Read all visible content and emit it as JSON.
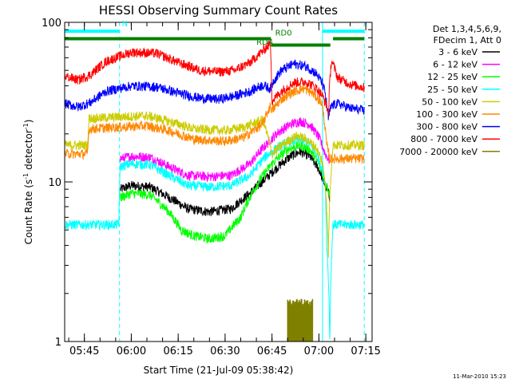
{
  "chart_data": {
    "type": "line",
    "title": "HESSI Observing Summary Count Rates",
    "xlabel": "Start Time (21-Jul-09 05:38:42)",
    "ylabel_parts": [
      "Count Rate (s",
      "-1",
      " detector",
      "-1",
      ")"
    ],
    "yscale": "log",
    "ylim": [
      1,
      100
    ],
    "xlim": [
      "05:38:42",
      "07:17:00"
    ],
    "y_ticks": [
      {
        "value": 1,
        "label": "1"
      },
      {
        "value": 10,
        "label": "10"
      },
      {
        "value": 100,
        "label": "100"
      }
    ],
    "x_ticks": [
      {
        "time": "05:45",
        "label": "05:45"
      },
      {
        "time": "06:00",
        "label": "06:00"
      },
      {
        "time": "06:15",
        "label": "06:15"
      },
      {
        "time": "06:30",
        "label": "06:30"
      },
      {
        "time": "06:45",
        "label": "06:45"
      },
      {
        "time": "07:00",
        "label": "07:00"
      },
      {
        "time": "07:15",
        "label": "07:15"
      }
    ],
    "legend_header": [
      "Det 1,3,4,5,6,9,",
      "FDecim 1, Att 0"
    ],
    "legend_position": "right",
    "series": [
      {
        "name": "3 - 6 keV",
        "color": "#000000",
        "style": "noisy",
        "points": [
          [
            "05:56:30",
            9.0
          ],
          [
            "06:00",
            9.5
          ],
          [
            "06:06",
            9.3
          ],
          [
            "06:12",
            8.0
          ],
          [
            "06:18",
            6.8
          ],
          [
            "06:25",
            6.5
          ],
          [
            "06:32",
            6.8
          ],
          [
            "06:38",
            8.5
          ],
          [
            "06:43",
            10.5
          ],
          [
            "06:47",
            12.5
          ],
          [
            "06:51",
            14.5
          ],
          [
            "06:54",
            15.5
          ],
          [
            "06:57",
            14.5
          ],
          [
            "07:00",
            12.0
          ],
          [
            "07:02",
            9.5
          ],
          [
            "07:03:30",
            8.0
          ]
        ]
      },
      {
        "name": "6 - 12 keV",
        "color": "#ff00ff",
        "style": "noisy",
        "points": [
          [
            "05:56:30",
            14.0
          ],
          [
            "06:00",
            14.5
          ],
          [
            "06:06",
            14.3
          ],
          [
            "06:12",
            12.5
          ],
          [
            "06:18",
            11.0
          ],
          [
            "06:25",
            10.8
          ],
          [
            "06:32",
            11.0
          ],
          [
            "06:38",
            13.0
          ],
          [
            "06:43",
            17.0
          ],
          [
            "06:47",
            20.5
          ],
          [
            "06:51",
            23.0
          ],
          [
            "06:54",
            24.0
          ],
          [
            "06:57",
            23.0
          ],
          [
            "07:00",
            19.0
          ],
          [
            "07:02",
            15.0
          ],
          [
            "07:03:30",
            13.5
          ]
        ]
      },
      {
        "name": "12 - 25 keV",
        "color": "#00ff00",
        "style": "noisy",
        "points": [
          [
            "05:56:30",
            8.0
          ],
          [
            "06:00",
            8.5
          ],
          [
            "06:06",
            8.3
          ],
          [
            "06:12",
            6.5
          ],
          [
            "06:16",
            5.0
          ],
          [
            "06:20",
            4.6
          ],
          [
            "06:25",
            4.4
          ],
          [
            "06:30",
            4.6
          ],
          [
            "06:35",
            6.0
          ],
          [
            "06:40",
            9.5
          ],
          [
            "06:45",
            13.0
          ],
          [
            "06:50",
            16.0
          ],
          [
            "06:54",
            17.0
          ],
          [
            "06:57",
            16.0
          ],
          [
            "07:00",
            13.0
          ],
          [
            "07:02",
            10.0
          ],
          [
            "07:03:30",
            8.5
          ]
        ]
      },
      {
        "name": "25 - 50 keV",
        "color": "#00ffff",
        "style": "noisy",
        "points": [
          [
            "05:38:42",
            5.4
          ],
          [
            "05:56:00",
            5.4
          ],
          [
            "05:56:30",
            12.5
          ],
          [
            "06:00",
            13.0
          ],
          [
            "06:06",
            12.8
          ],
          [
            "06:12",
            11.0
          ],
          [
            "06:18",
            9.5
          ],
          [
            "06:25",
            9.3
          ],
          [
            "06:32",
            9.5
          ],
          [
            "06:38",
            11.0
          ],
          [
            "06:43",
            14.5
          ],
          [
            "06:47",
            16.5
          ],
          [
            "06:51",
            18.0
          ],
          [
            "06:54",
            18.5
          ],
          [
            "06:57",
            17.5
          ],
          [
            "07:00",
            14.0
          ],
          [
            "07:02",
            10.0
          ],
          [
            "07:02:30",
            4.0
          ],
          [
            "07:03:30",
            1.0
          ],
          [
            "07:04:30",
            5.4
          ],
          [
            "07:14:30",
            5.4
          ]
        ]
      },
      {
        "name": "50 - 100 keV",
        "color": "#cccc00",
        "style": "noisy",
        "points": [
          [
            "05:38:42",
            17.0
          ],
          [
            "05:46:00",
            17.0
          ],
          [
            "05:46:30",
            25.0
          ],
          [
            "05:55",
            25.5
          ],
          [
            "06:05",
            26.0
          ],
          [
            "06:12",
            24.0
          ],
          [
            "06:20",
            21.5
          ],
          [
            "06:30",
            21.0
          ],
          [
            "06:36",
            22.0
          ],
          [
            "06:42",
            24.5
          ],
          [
            "06:45",
            15.0
          ],
          [
            "06:49",
            17.5
          ],
          [
            "06:53",
            19.5
          ],
          [
            "06:56",
            18.5
          ],
          [
            "06:59",
            16.5
          ],
          [
            "07:01",
            13.5
          ],
          [
            "07:02",
            10.0
          ],
          [
            "07:03",
            3.5
          ],
          [
            "07:04:30",
            17.0
          ],
          [
            "07:14:30",
            17.0
          ]
        ]
      },
      {
        "name": "100 - 300 keV",
        "color": "#ff8800",
        "style": "noisy",
        "points": [
          [
            "05:38:42",
            15.0
          ],
          [
            "05:46:00",
            15.0
          ],
          [
            "05:46:30",
            21.5
          ],
          [
            "05:55",
            22.0
          ],
          [
            "06:05",
            22.5
          ],
          [
            "06:12",
            21.0
          ],
          [
            "06:20",
            18.5
          ],
          [
            "06:30",
            18.0
          ],
          [
            "06:36",
            19.0
          ],
          [
            "06:42",
            23.0
          ],
          [
            "06:44:30",
            30.0
          ],
          [
            "06:45",
            28.0
          ],
          [
            "06:48",
            33.0
          ],
          [
            "06:52",
            37.0
          ],
          [
            "06:55",
            38.5
          ],
          [
            "06:58",
            36.0
          ],
          [
            "07:01",
            31.0
          ],
          [
            "07:02:30",
            17.0
          ],
          [
            "07:03:30",
            14.0
          ],
          [
            "07:14:30",
            14.0
          ]
        ]
      },
      {
        "name": "300 - 800 keV",
        "color": "#0000ff",
        "style": "noisy",
        "points": [
          [
            "05:38:42",
            31.0
          ],
          [
            "05:43",
            29.5
          ],
          [
            "05:47",
            31.5
          ],
          [
            "05:52",
            37.0
          ],
          [
            "06:00",
            40.0
          ],
          [
            "06:08",
            39.5
          ],
          [
            "06:15",
            36.0
          ],
          [
            "06:22",
            33.5
          ],
          [
            "06:28",
            33.0
          ],
          [
            "06:33",
            34.5
          ],
          [
            "06:38",
            37.0
          ],
          [
            "06:42",
            40.5
          ],
          [
            "06:44:30",
            38.5
          ],
          [
            "06:45:30",
            43.0
          ],
          [
            "06:48",
            50.0
          ],
          [
            "06:52",
            55.0
          ],
          [
            "06:56",
            53.0
          ],
          [
            "06:59",
            48.0
          ],
          [
            "07:01",
            42.0
          ],
          [
            "07:02",
            36.0
          ],
          [
            "07:03",
            25.0
          ],
          [
            "07:04",
            30.0
          ],
          [
            "07:06",
            31.0
          ],
          [
            "07:10",
            29.0
          ],
          [
            "07:14:30",
            28.0
          ]
        ]
      },
      {
        "name": "800 - 7000 keV",
        "color": "#ff0000",
        "style": "noisy",
        "points": [
          [
            "05:38:42",
            46.0
          ],
          [
            "05:43",
            43.5
          ],
          [
            "05:47",
            47.0
          ],
          [
            "05:52",
            57.0
          ],
          [
            "06:00",
            65.0
          ],
          [
            "06:08",
            64.0
          ],
          [
            "06:15",
            56.0
          ],
          [
            "06:22",
            50.0
          ],
          [
            "06:28",
            49.0
          ],
          [
            "06:33",
            50.0
          ],
          [
            "06:38",
            56.0
          ],
          [
            "06:42",
            66.0
          ],
          [
            "06:44:30",
            74.0
          ],
          [
            "06:45",
            32.0
          ],
          [
            "06:48",
            37.0
          ],
          [
            "06:52",
            42.0
          ],
          [
            "06:56",
            42.5
          ],
          [
            "06:59",
            39.0
          ],
          [
            "07:01",
            35.0
          ],
          [
            "07:02:30",
            30.0
          ],
          [
            "07:03",
            26.0
          ],
          [
            "07:04",
            58.0
          ],
          [
            "07:06",
            45.0
          ],
          [
            "07:10",
            41.0
          ],
          [
            "07:14:30",
            39.0
          ]
        ]
      },
      {
        "name": "7000 - 20000 keV",
        "color": "#808000",
        "style": "bars",
        "points": [
          [
            "06:50",
            1.85
          ],
          [
            "06:58",
            1.85
          ]
        ]
      }
    ],
    "annotations": [
      {
        "text": "N",
        "color": "#00ffff",
        "time": "05:57:00",
        "y": 90
      },
      {
        "text": "RD0",
        "color": "#008000",
        "time": "06:46:00",
        "y": 79
      },
      {
        "text": "RD4",
        "color": "#008000",
        "time": "06:40:00",
        "y": 69
      }
    ],
    "state_bars": [
      {
        "color": "#00ffff",
        "y": 88,
        "ranges": [
          [
            "05:38:42",
            "05:56:15"
          ],
          [
            "07:01:10",
            "07:14:30"
          ]
        ]
      },
      {
        "color": "#008000",
        "y": 79,
        "ranges": [
          [
            "05:38:42",
            "06:44:40"
          ],
          [
            "07:04:30",
            "07:14:30"
          ]
        ]
      },
      {
        "color": "#008000",
        "y": 72,
        "ranges": [
          [
            "06:44:40",
            "07:03:40"
          ]
        ]
      }
    ],
    "vlines": [
      {
        "color": "#00ffff",
        "style": "solid",
        "time": "05:38:42"
      },
      {
        "color": "#00ffff",
        "style": "dashed",
        "time": "05:56:15"
      },
      {
        "color": "#00ffff",
        "style": "solid",
        "time": "07:01:10"
      },
      {
        "color": "#00ffff",
        "style": "dashed",
        "time": "07:14:30"
      }
    ]
  },
  "footer_date": "11-Mar-2010 15:23"
}
